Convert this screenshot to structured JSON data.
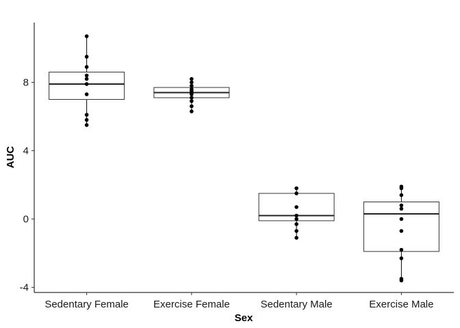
{
  "chart_data": {
    "type": "boxplot",
    "xlabel": "Sex",
    "ylabel": "AUC",
    "ylim": [
      -4.3,
      11.5
    ],
    "yticks": [
      -4,
      0,
      4,
      8
    ],
    "grid": false,
    "categories": [
      "Sedentary Female",
      "Exercise Female",
      "Sedentary Male",
      "Exercise Male"
    ],
    "boxes": [
      {
        "q1": 7.0,
        "median": 7.9,
        "q3": 8.6,
        "whisker_low": 5.5,
        "whisker_high": 10.7,
        "points": [
          5.5,
          5.8,
          6.1,
          7.3,
          7.9,
          8.2,
          8.4,
          8.9,
          9.5,
          10.7
        ]
      },
      {
        "q1": 7.1,
        "median": 7.4,
        "q3": 7.7,
        "whisker_low": 6.3,
        "whisker_high": 8.2,
        "points": [
          6.3,
          6.6,
          6.9,
          7.1,
          7.3,
          7.4,
          7.5,
          7.6,
          7.8,
          8.0,
          8.2
        ]
      },
      {
        "q1": -0.1,
        "median": 0.2,
        "q3": 1.5,
        "whisker_low": -1.1,
        "whisker_high": 1.8,
        "points": [
          -1.1,
          -0.7,
          -0.3,
          0.0,
          0.2,
          0.7,
          1.5,
          1.8
        ]
      },
      {
        "q1": -1.9,
        "median": 0.3,
        "q3": 1.0,
        "whisker_low": -3.6,
        "whisker_high": 1.9,
        "points": [
          -3.6,
          -3.5,
          -2.3,
          -1.8,
          -0.7,
          0.0,
          0.6,
          0.8,
          1.4,
          1.8,
          1.9
        ]
      }
    ]
  }
}
